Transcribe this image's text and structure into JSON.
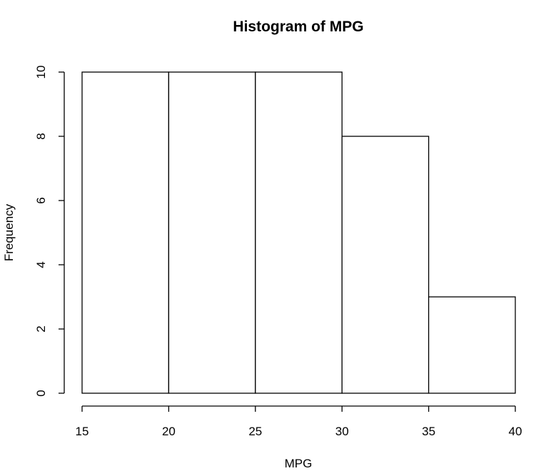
{
  "chart_data": {
    "type": "bar",
    "title": "Histogram of MPG",
    "xlabel": "MPG",
    "ylabel": "Frequency",
    "bins": [
      {
        "x0": 15,
        "x1": 20,
        "count": 10
      },
      {
        "x0": 20,
        "x1": 25,
        "count": 10
      },
      {
        "x0": 25,
        "x1": 30,
        "count": 10
      },
      {
        "x0": 30,
        "x1": 35,
        "count": 8
      },
      {
        "x0": 35,
        "x1": 40,
        "count": 3
      }
    ],
    "xlim": [
      15,
      40
    ],
    "ylim": [
      0,
      10
    ],
    "xticks": [
      "15",
      "20",
      "25",
      "30",
      "35",
      "40"
    ],
    "yticks": [
      "0",
      "2",
      "4",
      "6",
      "8",
      "10"
    ],
    "grid": false,
    "bar_fill": "#ffffff",
    "bar_stroke": "#000000"
  }
}
